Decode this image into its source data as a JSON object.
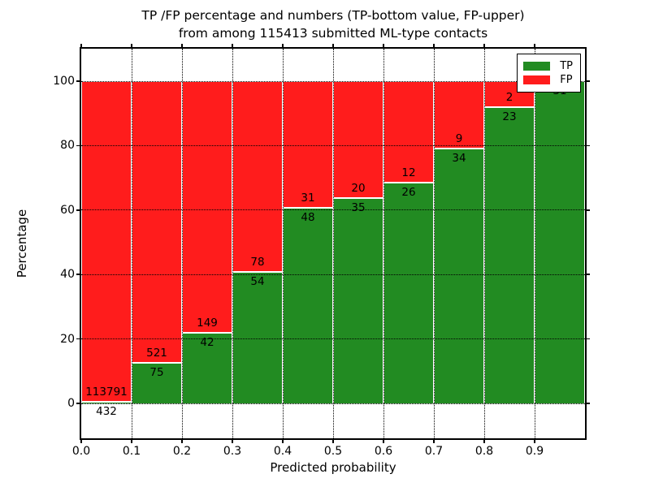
{
  "chart_data": {
    "type": "bar",
    "stacked": true,
    "title": "TP /FP percentage and numbers (TP-bottom value, FP-upper)\nfrom among 115413 submitted ML-type contacts",
    "title_lines": [
      "TP /FP percentage and numbers (TP-bottom value, FP-upper)",
      "from among 115413 submitted ML-type contacts"
    ],
    "total_submitted": 115413,
    "xlabel": "Predicted probability",
    "ylabel": "Percentage",
    "xlim": [
      0.0,
      1.0
    ],
    "ylim": [
      -11,
      110
    ],
    "grid": "dotted",
    "bin_width": 0.1,
    "bin_starts": [
      0.0,
      0.1,
      0.2,
      0.3,
      0.4,
      0.5,
      0.6,
      0.7,
      0.8,
      0.9
    ],
    "xtick_labels": [
      "0.0",
      "0.1",
      "0.2",
      "0.3",
      "0.4",
      "0.5",
      "0.6",
      "0.7",
      "0.8",
      "0.9"
    ],
    "ytick_values": [
      0,
      20,
      40,
      60,
      80,
      100
    ],
    "ytick_labels": [
      "0",
      "20",
      "40",
      "60",
      "80",
      "100"
    ],
    "series": [
      {
        "name": "TP",
        "color": "#228b22",
        "counts": [
          432,
          75,
          42,
          54,
          48,
          35,
          26,
          34,
          23,
          31
        ]
      },
      {
        "name": "FP",
        "color": "#ff1c1c",
        "counts": [
          113791,
          521,
          149,
          78,
          31,
          20,
          12,
          9,
          2,
          0
        ]
      }
    ],
    "tp_percent": [
      0.38,
      12.58,
      21.99,
      40.91,
      60.76,
      63.64,
      68.42,
      79.07,
      92.0,
      100.0
    ],
    "legend": {
      "position": "upper right",
      "entries": [
        {
          "label": "TP",
          "color": "#228b22"
        },
        {
          "label": "FP",
          "color": "#ff1c1c"
        }
      ]
    }
  }
}
